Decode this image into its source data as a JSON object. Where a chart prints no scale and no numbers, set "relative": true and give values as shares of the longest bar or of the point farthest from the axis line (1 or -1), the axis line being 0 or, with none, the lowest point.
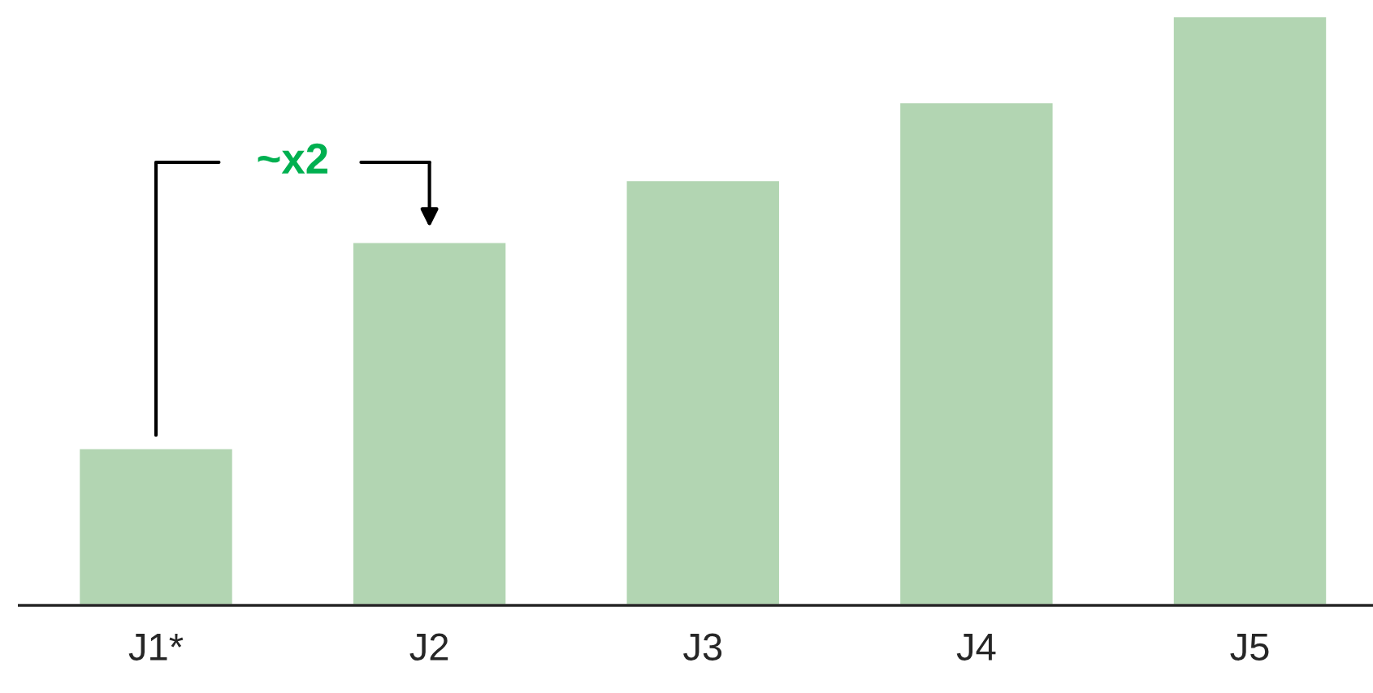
{
  "chart_data": {
    "type": "bar",
    "relative": true,
    "categories": [
      "J1*",
      "J2",
      "J3",
      "J4",
      "J5"
    ],
    "values": [
      0.267,
      0.617,
      0.722,
      0.854,
      1
    ],
    "color": "#b2d5b2",
    "annotations": [
      "~x2"
    ],
    "grid": false,
    "legend": false
  }
}
